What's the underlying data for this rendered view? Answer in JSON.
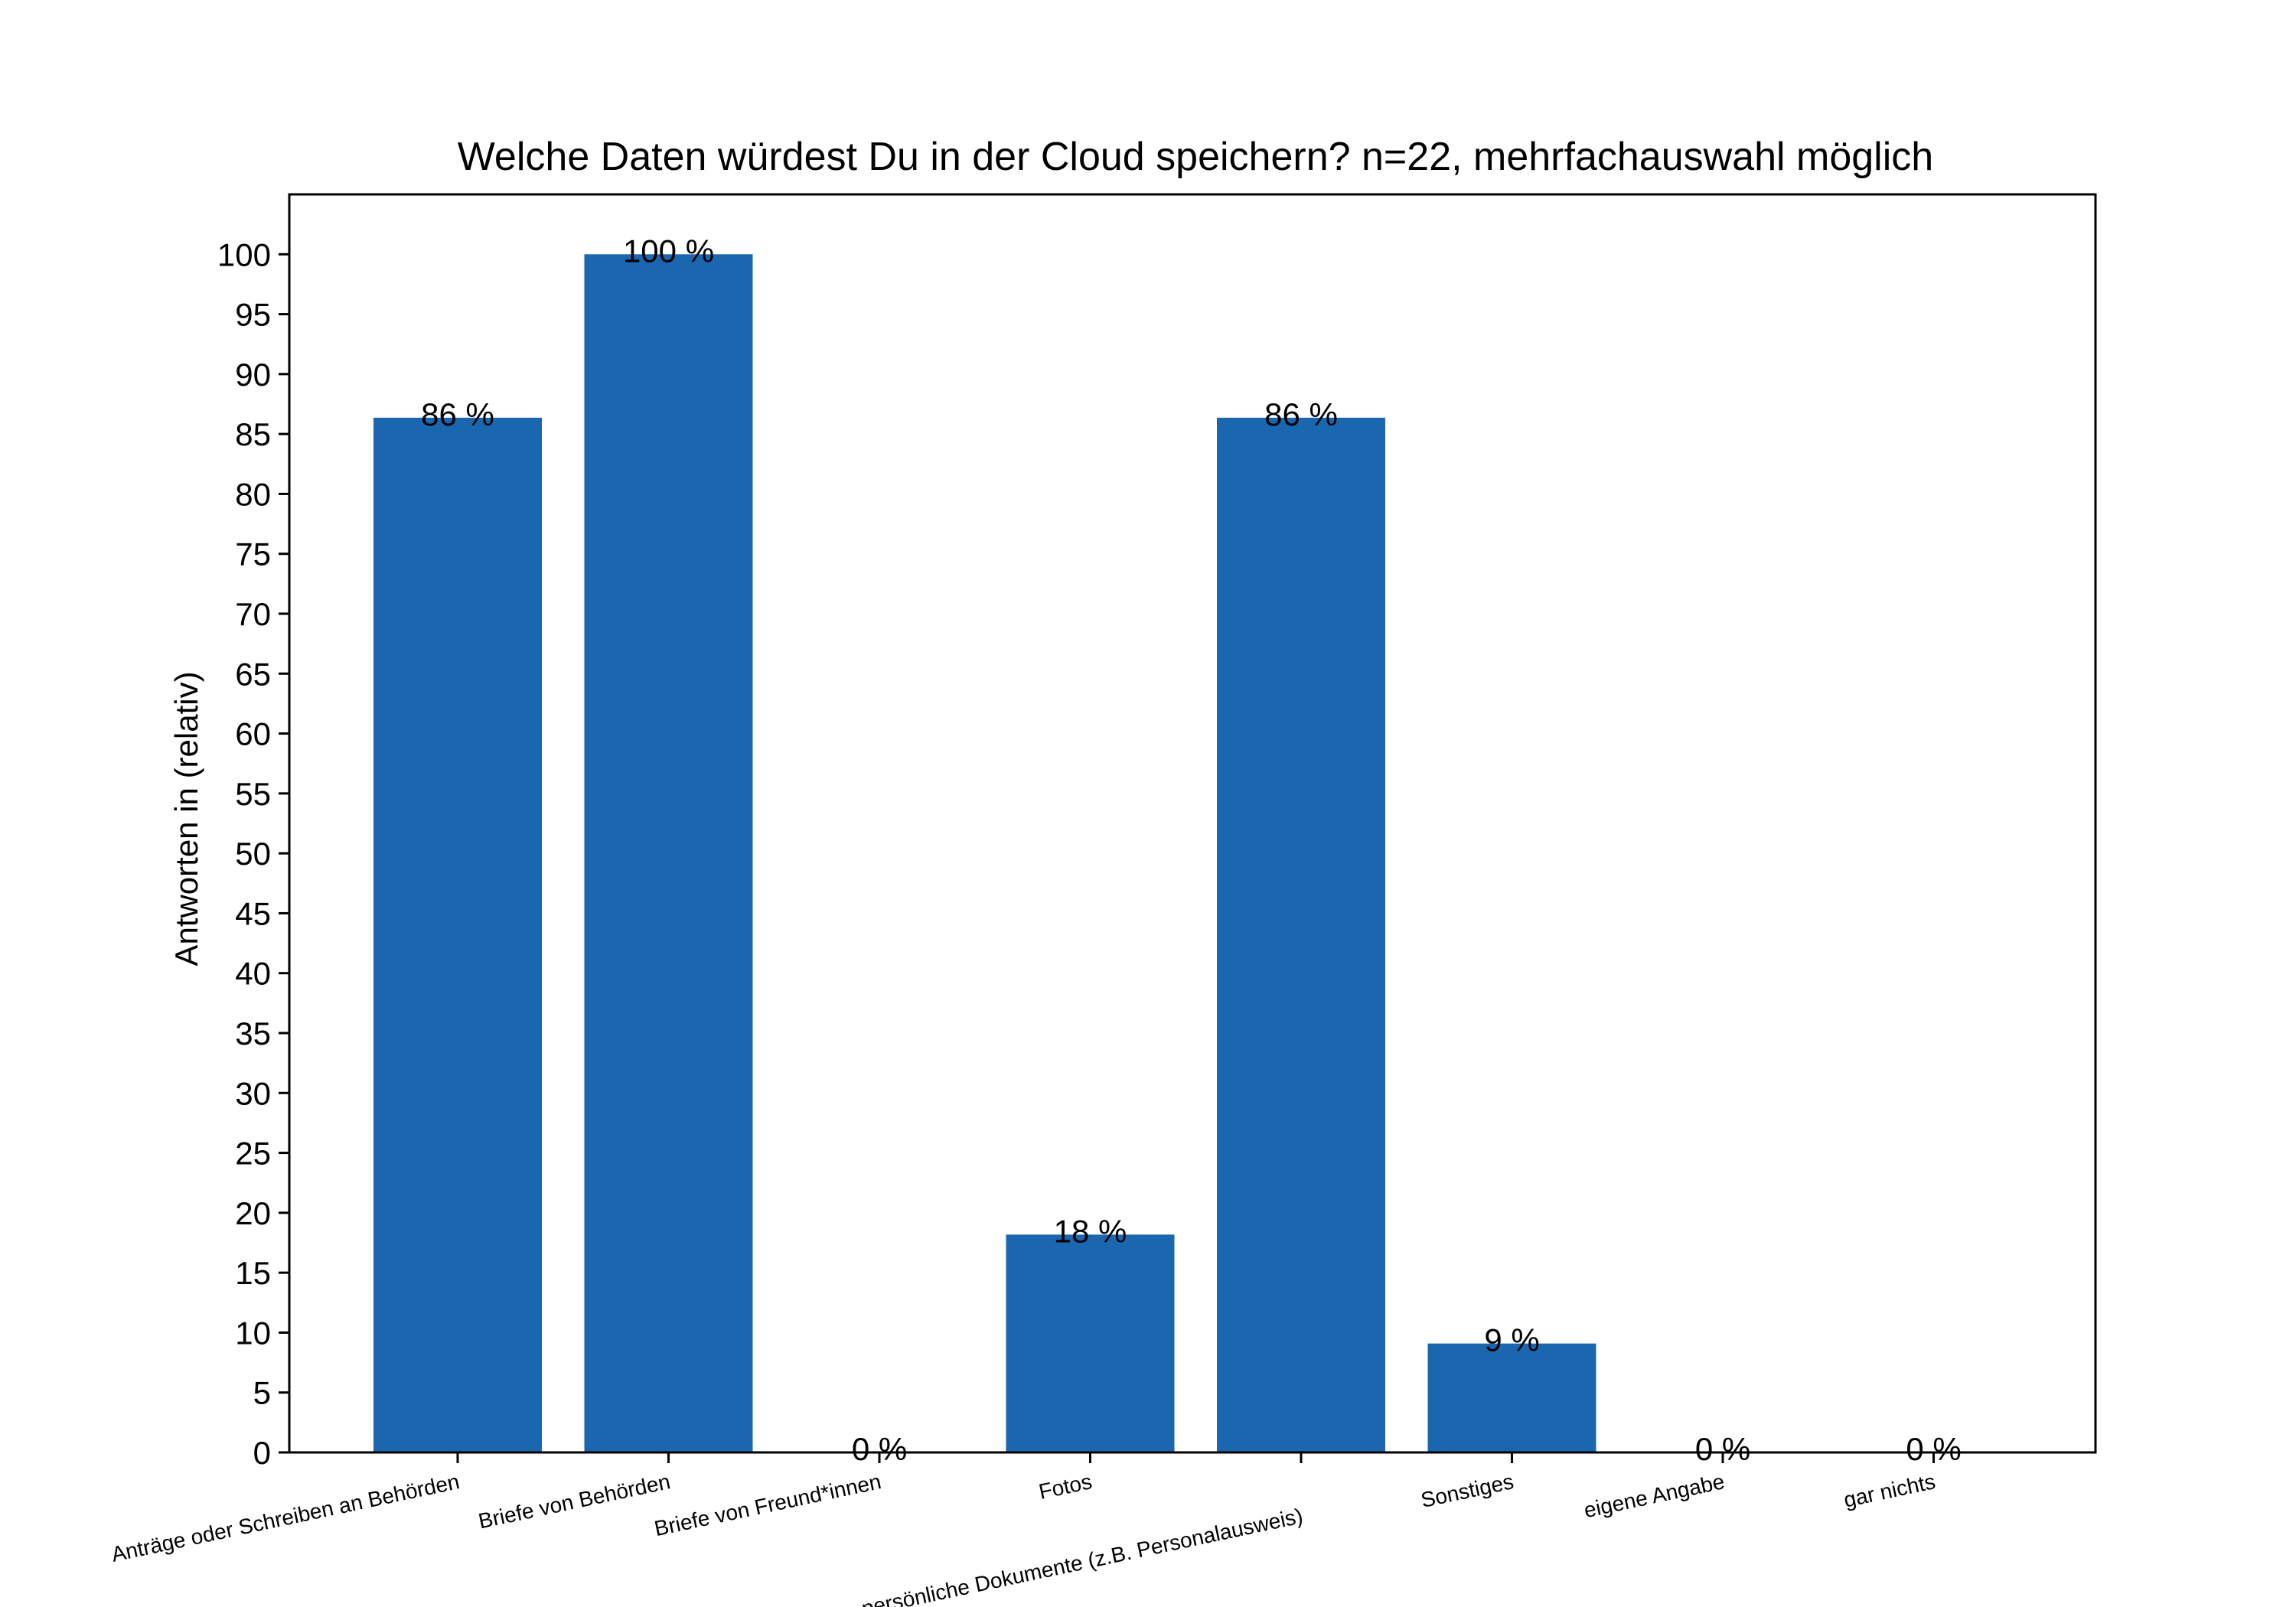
{
  "chart_data": {
    "type": "bar",
    "title": "Welche Daten würdest Du in der Cloud speichern? n=22, mehrfachauswahl möglich",
    "xlabel": "",
    "ylabel": "Antworten in (relativ)",
    "ylim": [
      0,
      105
    ],
    "yticks": [
      0,
      5,
      10,
      15,
      20,
      25,
      30,
      35,
      40,
      45,
      50,
      55,
      60,
      65,
      70,
      75,
      80,
      85,
      90,
      95,
      100
    ],
    "grid": false,
    "legend": "none",
    "bar_color": "#1a67b0",
    "categories": [
      "Anträge oder Schreiben an Behörden",
      "Briefe von Behörden",
      "Briefe von Freund*innen",
      "Fotos",
      "persönliche Dokumente (z.B. Personalausweis)",
      "Sonstiges",
      "eigene Angabe",
      "gar nichts"
    ],
    "values": [
      86.36,
      100,
      0,
      18.18,
      86.36,
      9.09,
      0,
      0
    ],
    "data_labels": [
      "86 %",
      "100 %",
      "0 %",
      "18 %",
      "86 %",
      "9 %",
      "0 %",
      "0 %"
    ]
  }
}
